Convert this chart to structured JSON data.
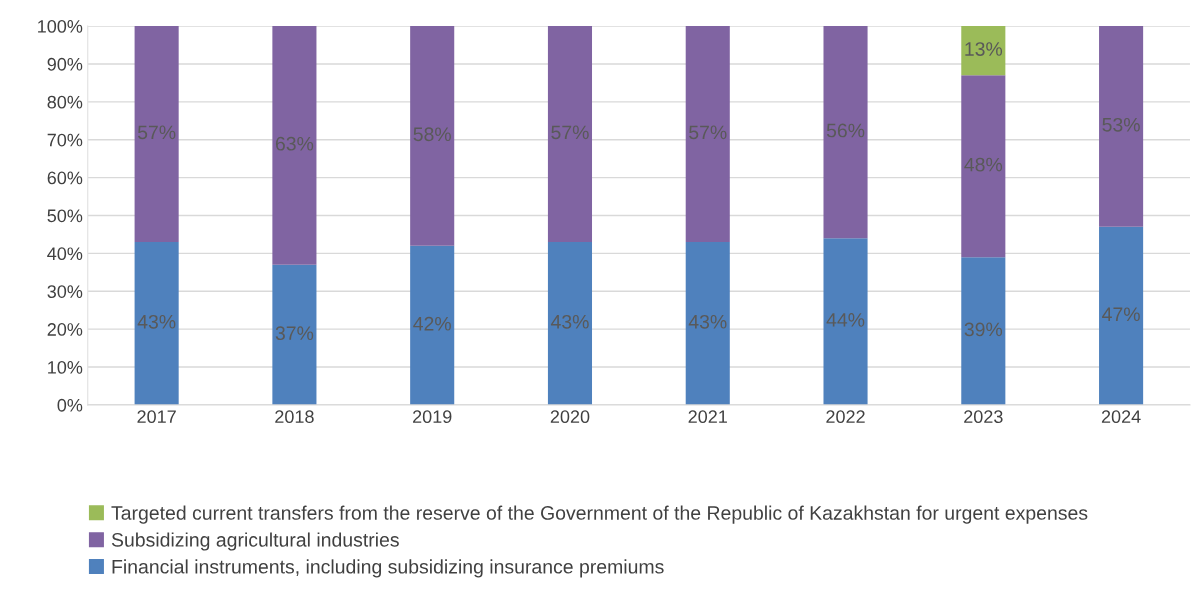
{
  "chart_data": {
    "type": "bar",
    "stacked": true,
    "categories": [
      "2017",
      "2018",
      "2019",
      "2020",
      "2021",
      "2022",
      "2023",
      "2024"
    ],
    "series": [
      {
        "name": "Financial instruments, including subsidizing insurance premiums",
        "color": "#4f81bd",
        "values": [
          43,
          37,
          42,
          43,
          43,
          44,
          39,
          47
        ],
        "value_labels": [
          "43%",
          "37%",
          "42%",
          "43%",
          "43%",
          "44%",
          "39%",
          "47%"
        ]
      },
      {
        "name": "Subsidizing agricultural industries",
        "color": "#8064a2",
        "values": [
          57,
          63,
          58,
          57,
          57,
          56,
          48,
          53
        ],
        "value_labels": [
          "57%",
          "63%",
          "58%",
          "57%",
          "57%",
          "56%",
          "48%",
          "53%"
        ]
      },
      {
        "name": "Targeted current transfers from the reserve of the Government of the Republic of Kazakhstan for urgent expenses",
        "color": "#9bbb59",
        "values": [
          null,
          null,
          null,
          null,
          null,
          null,
          13,
          null
        ],
        "value_labels": [
          null,
          null,
          null,
          null,
          null,
          null,
          "13%",
          null
        ]
      }
    ],
    "ylim": [
      0,
      100
    ],
    "yticks": [
      {
        "value": 0,
        "label": "0%"
      },
      {
        "value": 10,
        "label": "10%"
      },
      {
        "value": 20,
        "label": "20%"
      },
      {
        "value": 30,
        "label": "30%"
      },
      {
        "value": 40,
        "label": "40%"
      },
      {
        "value": 50,
        "label": "50%"
      },
      {
        "value": 60,
        "label": "60%"
      },
      {
        "value": 70,
        "label": "70%"
      },
      {
        "value": 80,
        "label": "80%"
      },
      {
        "value": 90,
        "label": "90%"
      },
      {
        "value": 100,
        "label": "100%"
      }
    ],
    "grid": "y",
    "legend": "bottom"
  }
}
